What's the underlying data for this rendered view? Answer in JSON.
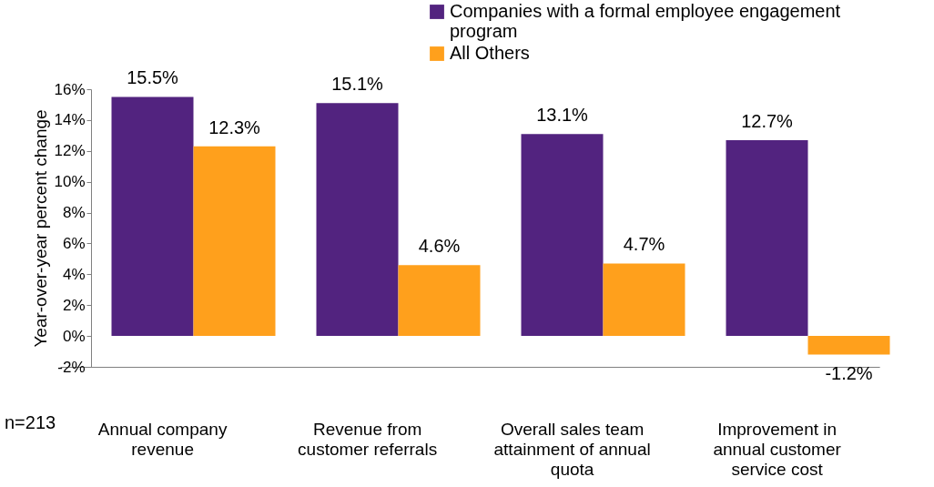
{
  "chart_data": {
    "type": "bar",
    "ylabel": "Year-over-year percent change",
    "categories": [
      "Annual company revenue",
      "Revenue from customer referrals",
      "Overall sales team attainment of annual quota",
      "Improvement in annual customer service cost"
    ],
    "series": [
      {
        "name": "Companies with a formal employee engagement program",
        "color": "#52237f",
        "values": [
          15.5,
          15.1,
          13.1,
          12.7
        ],
        "value_labels": [
          "15.5%",
          "15.1%",
          "13.1%",
          "12.7%"
        ]
      },
      {
        "name": "All Others",
        "color": "#ffa01c",
        "values": [
          12.3,
          4.6,
          4.7,
          -1.2
        ],
        "value_labels": [
          "12.3%",
          "4.6%",
          "4.7%",
          "-1.2%"
        ]
      }
    ],
    "ylim": [
      -2,
      16
    ],
    "yticks": [
      {
        "value": -2,
        "label": "-2%"
      },
      {
        "value": 0,
        "label": "0%"
      },
      {
        "value": 2,
        "label": "2%"
      },
      {
        "value": 4,
        "label": "4%"
      },
      {
        "value": 6,
        "label": "6%"
      },
      {
        "value": 8,
        "label": "8%"
      },
      {
        "value": 10,
        "label": "10%"
      },
      {
        "value": 12,
        "label": "12%"
      },
      {
        "value": 14,
        "label": "14%"
      },
      {
        "value": 16,
        "label": "16%"
      }
    ],
    "grid": false,
    "legend": "top right",
    "annotations": [
      "n=213"
    ]
  }
}
